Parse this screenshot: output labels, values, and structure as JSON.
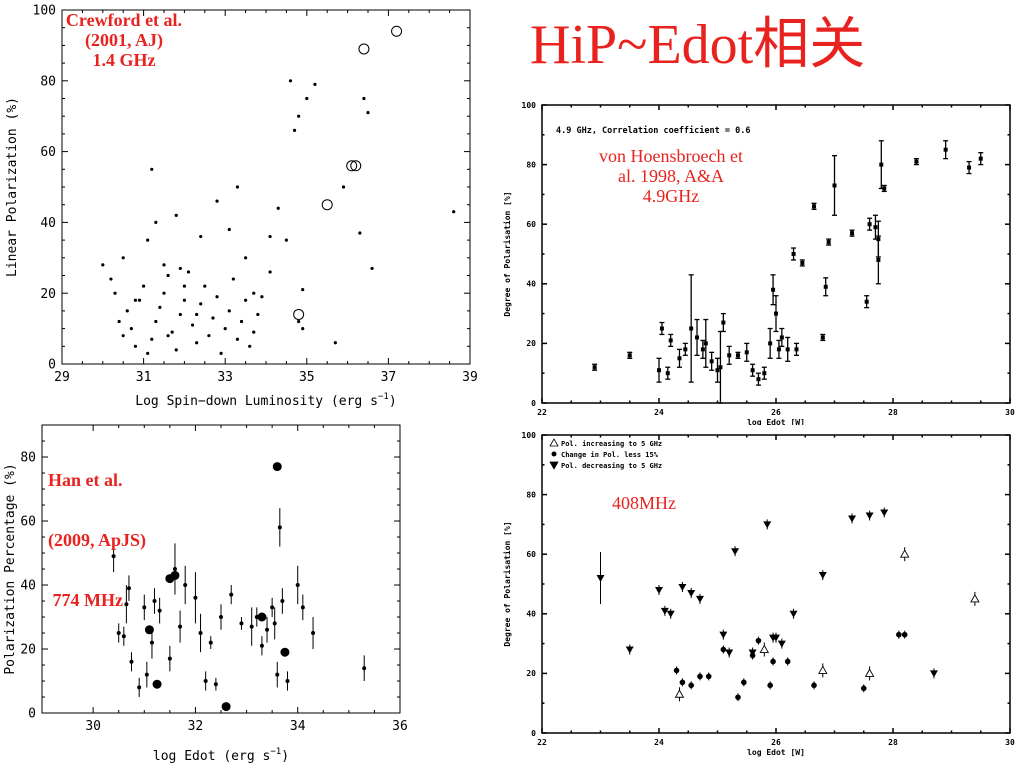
{
  "page_title": "HiP~Edot相关",
  "chart_data": [
    {
      "id": "crawford",
      "type": "scatter",
      "annotation": [
        "Crewford et al.",
        "(2001, AJ)",
        "1.4 GHz"
      ],
      "xlabel_main": "Log Spin−down Luminosity (erg s",
      "xlabel_sup": "−1",
      "xlabel_tail": ")",
      "ylabel": "Linear Polarization (%)",
      "xlim": [
        29,
        39
      ],
      "ylim": [
        0,
        100
      ],
      "xticks": [
        29,
        31,
        33,
        35,
        37,
        39
      ],
      "xticklabels": [
        "29",
        "31",
        "33",
        "35",
        "37",
        "39"
      ],
      "yticks": [
        0,
        20,
        40,
        60,
        80,
        100
      ],
      "yticklabels": [
        "0",
        "20",
        "40",
        "60",
        "80",
        "100"
      ],
      "series": [
        {
          "marker": "dot",
          "points": [
            [
              30,
              28
            ],
            [
              30.2,
              24
            ],
            [
              30.3,
              20
            ],
            [
              30.4,
              12
            ],
            [
              30.5,
              8
            ],
            [
              30.6,
              15
            ],
            [
              30.7,
              10
            ],
            [
              30.8,
              5
            ],
            [
              30.9,
              18
            ],
            [
              31,
              22
            ],
            [
              31.1,
              3
            ],
            [
              31.2,
              7
            ],
            [
              31.3,
              12
            ],
            [
              31.4,
              16
            ],
            [
              31.5,
              20
            ],
            [
              31.6,
              25
            ],
            [
              31.7,
              9
            ],
            [
              31.8,
              4
            ],
            [
              31.9,
              14
            ],
            [
              32,
              18
            ],
            [
              32.1,
              26
            ],
            [
              32.2,
              11
            ],
            [
              32.3,
              6
            ],
            [
              32.4,
              17
            ],
            [
              32.5,
              22
            ],
            [
              32.6,
              8
            ],
            [
              32.7,
              13
            ],
            [
              32.8,
              19
            ],
            [
              32.9,
              3
            ],
            [
              33,
              10
            ],
            [
              33.1,
              15
            ],
            [
              33.2,
              24
            ],
            [
              33.3,
              7
            ],
            [
              33.4,
              12
            ],
            [
              33.5,
              18
            ],
            [
              33.6,
              5
            ],
            [
              33.7,
              9
            ],
            [
              33.8,
              14
            ],
            [
              30.5,
              30
            ],
            [
              30.8,
              18
            ],
            [
              31.1,
              35
            ],
            [
              31.3,
              40
            ],
            [
              31.5,
              28
            ],
            [
              31.2,
              55
            ],
            [
              31.8,
              42
            ],
            [
              32.4,
              36
            ],
            [
              32.8,
              46
            ],
            [
              33.1,
              38
            ],
            [
              33.3,
              50
            ],
            [
              33.5,
              30
            ],
            [
              33.9,
              19
            ],
            [
              34.1,
              26
            ],
            [
              34.3,
              44
            ],
            [
              34.5,
              35
            ],
            [
              34.7,
              66
            ],
            [
              34.9,
              21
            ],
            [
              34.6,
              80
            ],
            [
              34.8,
              70
            ],
            [
              35,
              75
            ],
            [
              35.2,
              79
            ],
            [
              36.3,
              37
            ],
            [
              36.4,
              75
            ],
            [
              36.5,
              71
            ],
            [
              36.6,
              27
            ],
            [
              35.7,
              6
            ],
            [
              35.9,
              50
            ],
            [
              34.8,
              12
            ],
            [
              34.9,
              10
            ],
            [
              38.6,
              43
            ],
            [
              33.7,
              20
            ],
            [
              34.1,
              36
            ],
            [
              32,
              22
            ],
            [
              32.3,
              14
            ],
            [
              31.6,
              8
            ],
            [
              31.9,
              27
            ]
          ]
        },
        {
          "marker": "circle",
          "points": [
            [
              37.2,
              94
            ],
            [
              36.4,
              89
            ],
            [
              36.1,
              56
            ],
            [
              36.2,
              56
            ],
            [
              35.5,
              45
            ],
            [
              34.8,
              14
            ]
          ]
        }
      ]
    },
    {
      "id": "han",
      "type": "scatter",
      "annotation": [
        "Han et al.",
        "(2009, ApJS)",
        " 774 MHz"
      ],
      "xlabel_main": "log Edot (erg s",
      "xlabel_sup": "−1",
      "xlabel_tail": ")",
      "ylabel": "Polarization Percentage (%)",
      "xlim": [
        29,
        36
      ],
      "ylim": [
        0,
        90
      ],
      "xticks": [
        30,
        32,
        34,
        36
      ],
      "xticklabels": [
        "30",
        "32",
        "34",
        "36"
      ],
      "yticks": [
        0,
        20,
        40,
        60,
        80
      ],
      "yticklabels": [
        "0",
        "20",
        "40",
        "60",
        "80"
      ],
      "series": [
        {
          "marker": "small",
          "points": [
            [
              30.4,
              49,
              5
            ],
            [
              30.5,
              25,
              3
            ],
            [
              30.6,
              24,
              3
            ],
            [
              30.65,
              34,
              6
            ],
            [
              30.7,
              39,
              4
            ],
            [
              30.75,
              16,
              3
            ],
            [
              30.9,
              8,
              3
            ],
            [
              31,
              33,
              4
            ],
            [
              31.05,
              12,
              4
            ],
            [
              31.15,
              22,
              5
            ],
            [
              31.2,
              35,
              4
            ],
            [
              31.3,
              32,
              4
            ],
            [
              31.5,
              17,
              4
            ],
            [
              31.6,
              45,
              8
            ],
            [
              31.7,
              27,
              5
            ],
            [
              31.8,
              40,
              6
            ],
            [
              32,
              36,
              8
            ],
            [
              32.1,
              25,
              6
            ],
            [
              32.2,
              10,
              3
            ],
            [
              32.3,
              22,
              2
            ],
            [
              32.4,
              9,
              2
            ],
            [
              32.5,
              30,
              4
            ],
            [
              32.7,
              37,
              3
            ],
            [
              32.9,
              28,
              2
            ],
            [
              33.1,
              27,
              6
            ],
            [
              33.2,
              30,
              3
            ],
            [
              33.3,
              21,
              3
            ],
            [
              33.4,
              26,
              4
            ],
            [
              33.5,
              33,
              3
            ],
            [
              33.55,
              28,
              5
            ],
            [
              33.6,
              12,
              4
            ],
            [
              33.65,
              58,
              6
            ],
            [
              33.7,
              35,
              4
            ],
            [
              33.8,
              10,
              3
            ],
            [
              34,
              40,
              6
            ],
            [
              34.1,
              33,
              4
            ],
            [
              34.3,
              25,
              5
            ],
            [
              35.3,
              14,
              4
            ]
          ]
        },
        {
          "marker": "big",
          "points": [
            [
              31.1,
              26
            ],
            [
              31.25,
              9
            ],
            [
              31.5,
              42
            ],
            [
              31.6,
              43
            ],
            [
              32.6,
              2
            ],
            [
              33.3,
              30
            ],
            [
              33.6,
              77
            ],
            [
              33.75,
              19
            ]
          ]
        }
      ]
    },
    {
      "id": "hoensbroech49",
      "type": "scatter",
      "legend_text": "4.9 GHz, Correlation coefficient = 0.6",
      "annotation": [
        "von Hoensbroech et",
        "al. 1998, A&A",
        "4.9GHz"
      ],
      "xlabel": "log Edot [W]",
      "ylabel": "Degree of Polarisation [%]",
      "xlim": [
        22,
        30
      ],
      "ylim": [
        0,
        100
      ],
      "xticks": [
        22,
        24,
        26,
        28,
        30
      ],
      "xticklabels": [
        "22",
        "24",
        "26",
        "28",
        "30"
      ],
      "yticks": [
        0,
        20,
        40,
        60,
        80,
        100
      ],
      "yticklabels": [
        "0",
        "20",
        "40",
        "60",
        "80",
        "100"
      ],
      "series": [
        {
          "marker": "bar",
          "points": [
            [
              22.9,
              12,
              1
            ],
            [
              23.5,
              16,
              1
            ],
            [
              24,
              11,
              4
            ],
            [
              24.05,
              25,
              2
            ],
            [
              24.15,
              10,
              2
            ],
            [
              24.2,
              21,
              2
            ],
            [
              24.35,
              15,
              3
            ],
            [
              24.45,
              18,
              2
            ],
            [
              24.55,
              25,
              18
            ],
            [
              24.65,
              22,
              6
            ],
            [
              24.75,
              18,
              3
            ],
            [
              24.8,
              20,
              8
            ],
            [
              24.9,
              14,
              3
            ],
            [
              25,
              11,
              4
            ],
            [
              25.05,
              12,
              12
            ],
            [
              25.1,
              27,
              3
            ],
            [
              25.2,
              16,
              3
            ],
            [
              25.35,
              16,
              1
            ],
            [
              25.5,
              17,
              3
            ],
            [
              25.6,
              11,
              2
            ],
            [
              25.7,
              8,
              2
            ],
            [
              25.8,
              10,
              2
            ],
            [
              25.9,
              20,
              5
            ],
            [
              25.95,
              38,
              5
            ],
            [
              26,
              30,
              6
            ],
            [
              26.05,
              18,
              3
            ],
            [
              26.1,
              22,
              3
            ],
            [
              26.2,
              18,
              4
            ],
            [
              26.3,
              50,
              2
            ],
            [
              26.35,
              18,
              2
            ],
            [
              26.45,
              47,
              1
            ],
            [
              26.65,
              66,
              1
            ],
            [
              26.8,
              22,
              1
            ],
            [
              26.85,
              39,
              3
            ],
            [
              26.9,
              54,
              1
            ],
            [
              27,
              73,
              10
            ],
            [
              27.3,
              57,
              1
            ],
            [
              27.55,
              34,
              2
            ],
            [
              27.6,
              60,
              2
            ],
            [
              27.7,
              59,
              4
            ],
            [
              27.75,
              48,
              8
            ],
            [
              27.75,
              55,
              6
            ],
            [
              27.8,
              80,
              8
            ],
            [
              27.85,
              72,
              1
            ],
            [
              28.4,
              81,
              1
            ],
            [
              28.9,
              85,
              3
            ],
            [
              29.3,
              79,
              2
            ],
            [
              29.5,
              82,
              2
            ]
          ]
        }
      ]
    },
    {
      "id": "hoensbroech408",
      "type": "scatter",
      "legend": [
        "Pol. increasing to 5 GHz",
        "Change in Pol. less 15%",
        "Pol. decreasing to 5 GHz"
      ],
      "annotation": [
        "408MHz"
      ],
      "xlabel": "log Edot [W]",
      "ylabel": "Degree of Polarisation [%]",
      "xlim": [
        22,
        30
      ],
      "ylim": [
        0,
        100
      ],
      "xticks": [
        22,
        24,
        26,
        28,
        30
      ],
      "xticklabels": [
        "22",
        "24",
        "26",
        "28",
        "30"
      ],
      "yticks": [
        0,
        20,
        40,
        60,
        80,
        100
      ],
      "yticklabels": [
        "0",
        "20",
        "40",
        "60",
        "80",
        "100"
      ],
      "series": [
        {
          "marker": "triangle-up",
          "points": [
            [
              24.35,
              13
            ],
            [
              25.8,
              28
            ],
            [
              26.8,
              21
            ],
            [
              27.6,
              20
            ],
            [
              28.2,
              60
            ],
            [
              29.4,
              45
            ]
          ]
        },
        {
          "marker": "circle",
          "points": [
            [
              24.3,
              21
            ],
            [
              24.4,
              17
            ],
            [
              24.55,
              16
            ],
            [
              24.7,
              19
            ],
            [
              24.85,
              19
            ],
            [
              25.1,
              28
            ],
            [
              25.35,
              12
            ],
            [
              25.45,
              17
            ],
            [
              25.6,
              26
            ],
            [
              25.7,
              31
            ],
            [
              25.9,
              16
            ],
            [
              25.95,
              24
            ],
            [
              26.2,
              24
            ],
            [
              26.65,
              16
            ],
            [
              27.5,
              15
            ],
            [
              28.1,
              33
            ],
            [
              28.2,
              33
            ]
          ]
        },
        {
          "marker": "triangle-down",
          "points": [
            [
              23,
              52
            ],
            [
              23.5,
              28
            ],
            [
              24,
              48
            ],
            [
              24.1,
              41
            ],
            [
              24.2,
              40
            ],
            [
              24.4,
              49
            ],
            [
              24.55,
              47
            ],
            [
              24.7,
              45
            ],
            [
              25.1,
              33
            ],
            [
              25.2,
              27
            ],
            [
              25.3,
              61
            ],
            [
              25.6,
              27
            ],
            [
              25.85,
              70
            ],
            [
              25.95,
              32
            ],
            [
              26,
              32
            ],
            [
              26.1,
              30
            ],
            [
              26.3,
              40
            ],
            [
              26.8,
              53
            ],
            [
              27.3,
              72
            ],
            [
              27.6,
              73
            ],
            [
              27.85,
              74
            ],
            [
              28.7,
              20
            ]
          ]
        }
      ]
    }
  ]
}
